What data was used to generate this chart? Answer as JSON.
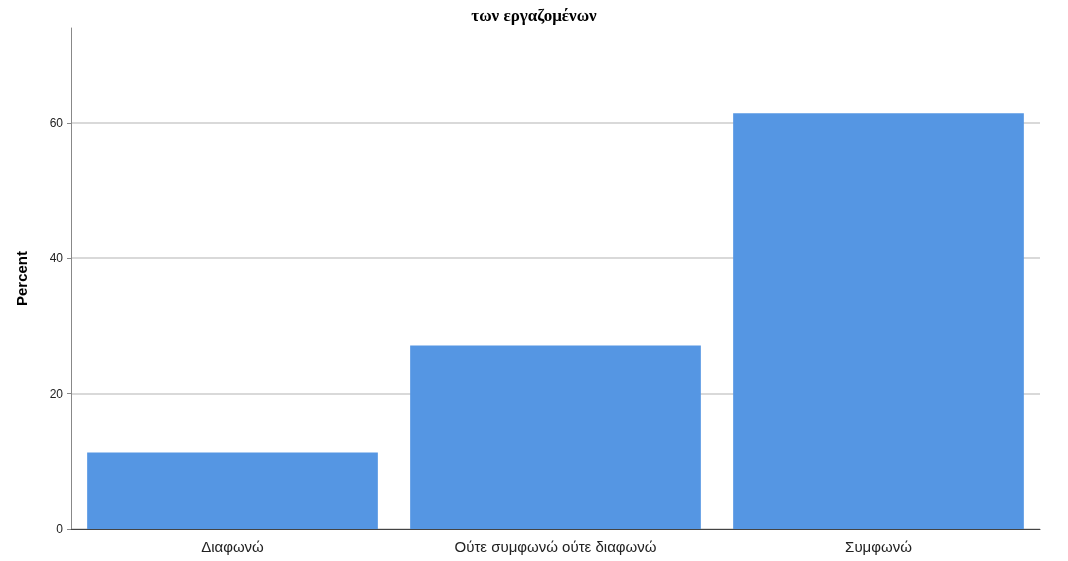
{
  "chart_data": {
    "type": "bar",
    "title": "των εργαζομένων",
    "ylabel": "Percent",
    "categories": [
      "Διαφωνώ",
      "Ούτε συμφωνώ ούτε διαφωνώ",
      "Συμφωνώ"
    ],
    "values": [
      11.3,
      27.1,
      61.4
    ],
    "color": "#5596e3",
    "ylim": [
      0,
      74
    ],
    "yticks": [
      0,
      20,
      40,
      60
    ],
    "grid": "y"
  }
}
